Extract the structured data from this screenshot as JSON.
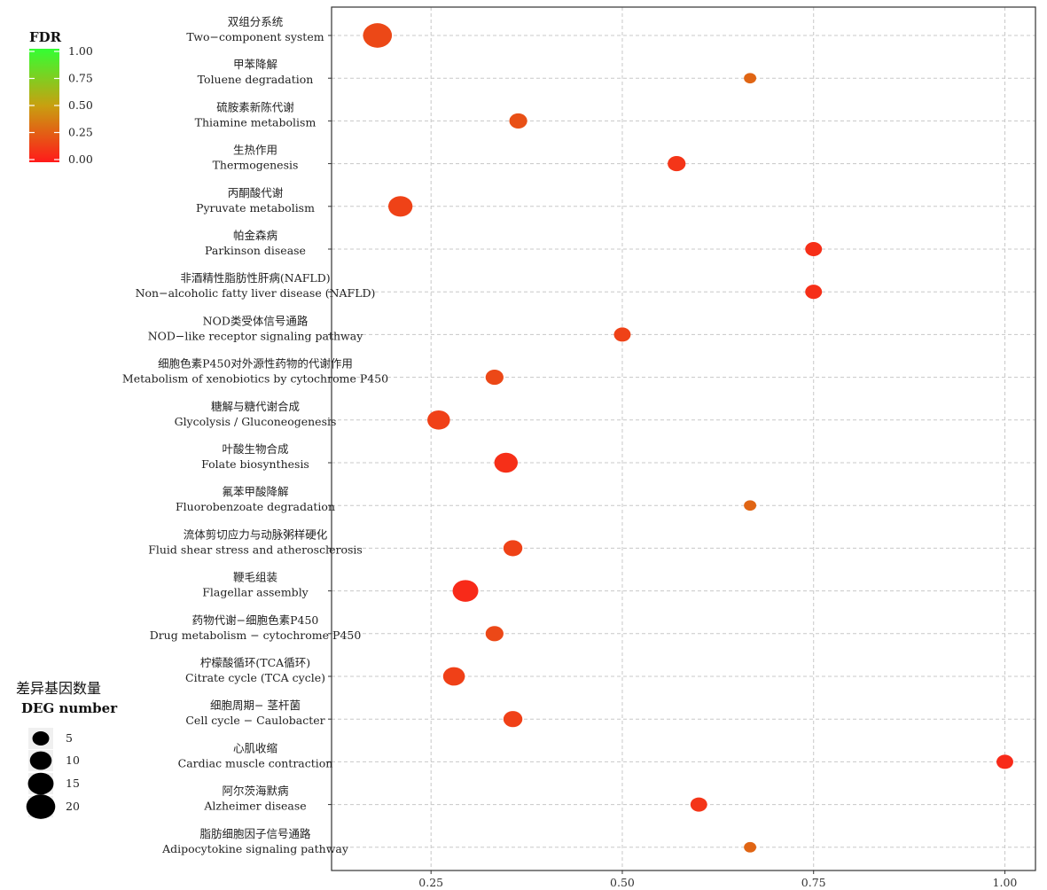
{
  "chart_data": {
    "type": "scatter",
    "x_ticks": [
      0.25,
      0.5,
      0.75,
      1.0
    ],
    "x_tick_labels": [
      "0.25",
      "0.50",
      "0.75",
      "1.00"
    ],
    "xlim": [
      0.12,
      1.04
    ],
    "categories": [
      {
        "cn": "双组分系统",
        "en": "Two−component system",
        "x": 0.18,
        "count": 20,
        "fdr": 0.17
      },
      {
        "cn": "甲苯降解",
        "en": "Toluene degradation",
        "x": 0.667,
        "count": 2,
        "fdr": 0.28
      },
      {
        "cn": "硫胺素新陈代谢",
        "en": "Thiamine metabolism",
        "x": 0.364,
        "count": 6,
        "fdr": 0.2
      },
      {
        "cn": "生热作用",
        "en": "Thermogenesis",
        "x": 0.571,
        "count": 6,
        "fdr": 0.1
      },
      {
        "cn": "丙酮酸代谢",
        "en": "Pyruvate metabolism",
        "x": 0.21,
        "count": 13,
        "fdr": 0.15
      },
      {
        "cn": "帕金森病",
        "en": "Parkinson disease",
        "x": 0.75,
        "count": 5,
        "fdr": 0.08
      },
      {
        "cn": "非酒精性脂肪性肝病(NAFLD)",
        "en": "Non−alcoholic fatty liver disease (NAFLD)",
        "x": 0.75,
        "count": 5,
        "fdr": 0.08
      },
      {
        "cn": "NOD类受体信号通路",
        "en": "NOD−like receptor signaling pathway",
        "x": 0.5,
        "count": 5,
        "fdr": 0.15
      },
      {
        "cn": "细胞色素P450对外源性药物的代谢作用",
        "en": "Metabolism of xenobiotics by cytochrome P450",
        "x": 0.333,
        "count": 6,
        "fdr": 0.17
      },
      {
        "cn": "糖解与糖代谢合成",
        "en": "Glycolysis / Gluconeogenesis",
        "x": 0.26,
        "count": 11,
        "fdr": 0.14
      },
      {
        "cn": "叶酸生物合成",
        "en": "Folate biosynthesis",
        "x": 0.348,
        "count": 12,
        "fdr": 0.08
      },
      {
        "cn": "氟苯甲酸降解",
        "en": "Fluorobenzoate degradation",
        "x": 0.667,
        "count": 2,
        "fdr": 0.28
      },
      {
        "cn": "流体剪切应力与动脉粥样硬化",
        "en": "Fluid shear stress and atherosclerosis",
        "x": 0.357,
        "count": 7,
        "fdr": 0.15
      },
      {
        "cn": "鞭毛组装",
        "en": "Flagellar assembly",
        "x": 0.295,
        "count": 15,
        "fdr": 0.06
      },
      {
        "cn": "药物代谢−细胞色素P450",
        "en": "Drug metabolism − cytochrome P450",
        "x": 0.333,
        "count": 6,
        "fdr": 0.17
      },
      {
        "cn": "柠檬酸循环(TCA循环)",
        "en": "Citrate cycle (TCA cycle)",
        "x": 0.28,
        "count": 10,
        "fdr": 0.14
      },
      {
        "cn": "细胞周期− 茎杆菌",
        "en": "Cell cycle − Caulobacter",
        "x": 0.357,
        "count": 7,
        "fdr": 0.14
      },
      {
        "cn": "心肌收缩",
        "en": "Cardiac muscle contraction",
        "x": 1.0,
        "count": 5,
        "fdr": 0.06
      },
      {
        "cn": "阿尔茨海默病",
        "en": "Alzheimer disease",
        "x": 0.6,
        "count": 5,
        "fdr": 0.1
      },
      {
        "cn": "脂肪细胞因子信号通路",
        "en": "Adipocytokine signaling pathway",
        "x": 0.667,
        "count": 2,
        "fdr": 0.28
      }
    ],
    "color_legend": {
      "title": "FDR",
      "ticks": [
        1.0,
        0.75,
        0.5,
        0.25,
        0.0
      ],
      "tick_labels": [
        "1.00",
        "0.75",
        "0.50",
        "0.25",
        "0.00"
      ],
      "low_color": "#ff1a1a",
      "mid_color": "#c8a010",
      "high_color": "#33ff33"
    },
    "size_legend": {
      "title_cn": "差异基因数量",
      "title_en": "DEG number",
      "values": [
        5,
        10,
        15,
        20
      ],
      "labels": [
        "5",
        "10",
        "15",
        "20"
      ]
    },
    "grid": true,
    "grid_color": "#c8c8c8"
  }
}
